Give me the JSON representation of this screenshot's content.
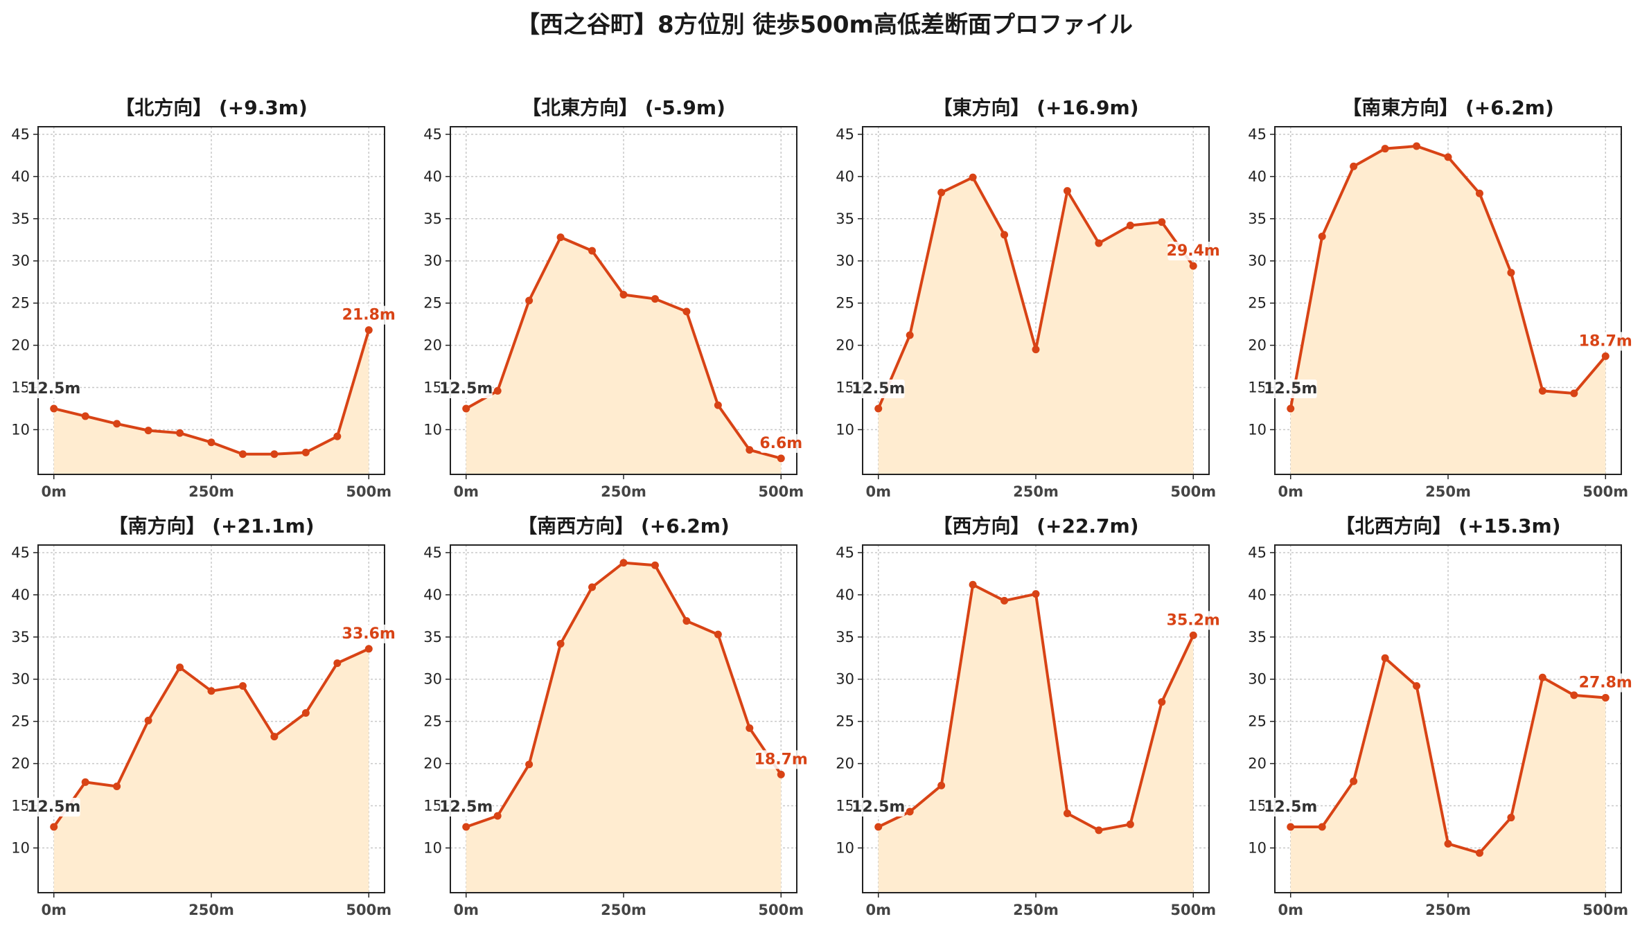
{
  "title": "【西之谷町】8方位別 徒歩500m高低差断面プロファイル",
  "colors": {
    "line": "#d84315",
    "fill": "#ffecd0",
    "grid": "#c8c8c8",
    "axis": "#222222",
    "start_label": "#333333"
  },
  "chart_data": [
    {
      "type": "area",
      "title": "【北方向】 (+9.3m)",
      "x": [
        0,
        50,
        100,
        150,
        200,
        250,
        300,
        350,
        400,
        450,
        500
      ],
      "values": [
        12.5,
        11.6,
        10.7,
        9.9,
        9.6,
        8.5,
        7.1,
        7.1,
        7.3,
        9.2,
        21.8
      ],
      "ylim": [
        5,
        45
      ],
      "yticks": [
        10,
        15,
        20,
        25,
        30,
        35,
        40,
        45
      ],
      "xticks": [
        "0m",
        "250m",
        "500m"
      ],
      "start_label": "12.5m",
      "end_label": "21.8m",
      "grid": true
    },
    {
      "type": "area",
      "title": "【北東方向】 (-5.9m)",
      "x": [
        0,
        50,
        100,
        150,
        200,
        250,
        300,
        350,
        400,
        450,
        500
      ],
      "values": [
        12.5,
        14.6,
        25.3,
        32.8,
        31.2,
        26.0,
        25.5,
        24.0,
        12.9,
        7.6,
        6.6
      ],
      "ylim": [
        5,
        45
      ],
      "yticks": [
        10,
        15,
        20,
        25,
        30,
        35,
        40,
        45
      ],
      "xticks": [
        "0m",
        "250m",
        "500m"
      ],
      "start_label": "12.5m",
      "end_label": "6.6m",
      "grid": true
    },
    {
      "type": "area",
      "title": "【東方向】 (+16.9m)",
      "x": [
        0,
        50,
        100,
        150,
        200,
        250,
        300,
        350,
        400,
        450,
        500
      ],
      "values": [
        12.5,
        21.2,
        38.1,
        39.9,
        33.1,
        19.5,
        38.3,
        32.1,
        34.2,
        34.6,
        29.4
      ],
      "ylim": [
        5,
        45
      ],
      "yticks": [
        10,
        15,
        20,
        25,
        30,
        35,
        40,
        45
      ],
      "xticks": [
        "0m",
        "250m",
        "500m"
      ],
      "start_label": "12.5m",
      "end_label": "29.4m",
      "grid": true
    },
    {
      "type": "area",
      "title": "【南東方向】 (+6.2m)",
      "x": [
        0,
        50,
        100,
        150,
        200,
        250,
        300,
        350,
        400,
        450,
        500
      ],
      "values": [
        12.5,
        32.9,
        41.2,
        43.3,
        43.6,
        42.3,
        38.0,
        28.6,
        14.6,
        14.3,
        18.7
      ],
      "ylim": [
        5,
        45
      ],
      "yticks": [
        10,
        15,
        20,
        25,
        30,
        35,
        40,
        45
      ],
      "xticks": [
        "0m",
        "250m",
        "500m"
      ],
      "start_label": "12.5m",
      "end_label": "18.7m",
      "grid": true
    },
    {
      "type": "area",
      "title": "【南方向】 (+21.1m)",
      "x": [
        0,
        50,
        100,
        150,
        200,
        250,
        300,
        350,
        400,
        450,
        500
      ],
      "values": [
        12.5,
        17.8,
        17.3,
        25.1,
        31.4,
        28.6,
        29.2,
        23.2,
        26.0,
        31.9,
        33.6
      ],
      "ylim": [
        5,
        45
      ],
      "yticks": [
        10,
        15,
        20,
        25,
        30,
        35,
        40,
        45
      ],
      "xticks": [
        "0m",
        "250m",
        "500m"
      ],
      "start_label": "12.5m",
      "end_label": "33.6m",
      "grid": true
    },
    {
      "type": "area",
      "title": "【南西方向】 (+6.2m)",
      "x": [
        0,
        50,
        100,
        150,
        200,
        250,
        300,
        350,
        400,
        450,
        500
      ],
      "values": [
        12.5,
        13.8,
        19.9,
        34.2,
        40.9,
        43.8,
        43.5,
        36.9,
        35.3,
        24.2,
        18.7
      ],
      "ylim": [
        5,
        45
      ],
      "yticks": [
        10,
        15,
        20,
        25,
        30,
        35,
        40,
        45
      ],
      "xticks": [
        "0m",
        "250m",
        "500m"
      ],
      "start_label": "12.5m",
      "end_label": "18.7m",
      "grid": true
    },
    {
      "type": "area",
      "title": "【西方向】 (+22.7m)",
      "x": [
        0,
        50,
        100,
        150,
        200,
        250,
        300,
        350,
        400,
        450,
        500
      ],
      "values": [
        12.5,
        14.3,
        17.4,
        41.2,
        39.3,
        40.1,
        14.1,
        12.1,
        12.8,
        27.3,
        35.2
      ],
      "ylim": [
        5,
        45
      ],
      "yticks": [
        10,
        15,
        20,
        25,
        30,
        35,
        40,
        45
      ],
      "xticks": [
        "0m",
        "250m",
        "500m"
      ],
      "start_label": "12.5m",
      "end_label": "35.2m",
      "grid": true
    },
    {
      "type": "area",
      "title": "【北西方向】 (+15.3m)",
      "x": [
        0,
        50,
        100,
        150,
        200,
        250,
        300,
        350,
        400,
        450,
        500
      ],
      "values": [
        12.5,
        12.5,
        17.9,
        32.5,
        29.2,
        10.5,
        9.4,
        13.6,
        30.2,
        28.1,
        27.8
      ],
      "ylim": [
        5,
        45
      ],
      "yticks": [
        10,
        15,
        20,
        25,
        30,
        35,
        40,
        45
      ],
      "xticks": [
        "0m",
        "250m",
        "500m"
      ],
      "start_label": "12.5m",
      "end_label": "27.8m",
      "grid": true
    }
  ]
}
